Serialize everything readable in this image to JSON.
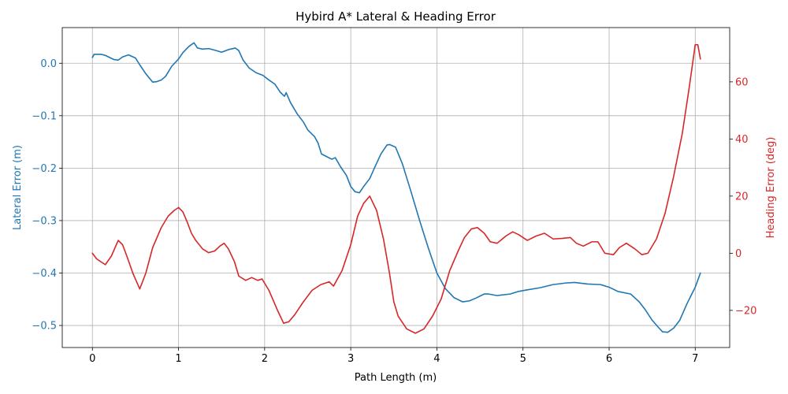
{
  "chart_data": {
    "type": "line",
    "title": "Hybird A* Lateral & Heading Error",
    "xlabel": "Path Length (m)",
    "ylabel_left": "Lateral Error (m)",
    "ylabel_right": "Heading Error (deg)",
    "xlim": [
      -0.35,
      7.4
    ],
    "ylim_left": [
      -0.542,
      0.068
    ],
    "ylim_right": [
      -33,
      79
    ],
    "x_ticks": [
      0,
      1,
      2,
      3,
      4,
      5,
      6,
      7
    ],
    "x_tick_labels": [
      "0",
      "1",
      "2",
      "3",
      "4",
      "5",
      "6",
      "7"
    ],
    "y_left_ticks": [
      0.0,
      -0.1,
      -0.2,
      -0.3,
      -0.4,
      -0.5
    ],
    "y_left_tick_labels": [
      "0.0",
      "−0.1",
      "−0.2",
      "−0.3",
      "−0.4",
      "−0.5"
    ],
    "y_right_ticks": [
      60,
      40,
      20,
      0,
      -20
    ],
    "y_right_tick_labels": [
      "60",
      "40",
      "20",
      "0",
      "−20"
    ],
    "grid": true,
    "colors": {
      "lateral": "#1f77b4",
      "heading": "#d62728"
    },
    "series": [
      {
        "axis": "left",
        "points": [
          [
            0,
            0.011
          ],
          [
            0.02,
            0.017
          ],
          [
            0.1,
            0.017
          ],
          [
            0.15,
            0.015
          ],
          [
            0.25,
            0.007
          ],
          [
            0.3,
            0.006
          ],
          [
            0.35,
            0.012
          ],
          [
            0.42,
            0.016
          ],
          [
            0.5,
            0.01
          ],
          [
            0.55,
            -0.003
          ],
          [
            0.62,
            -0.02
          ],
          [
            0.7,
            -0.036
          ],
          [
            0.75,
            -0.035
          ],
          [
            0.8,
            -0.032
          ],
          [
            0.85,
            -0.025
          ],
          [
            0.92,
            -0.006
          ],
          [
            1.0,
            0.008
          ],
          [
            1.05,
            0.02
          ],
          [
            1.12,
            0.032
          ],
          [
            1.18,
            0.039
          ],
          [
            1.22,
            0.029
          ],
          [
            1.28,
            0.027
          ],
          [
            1.35,
            0.028
          ],
          [
            1.42,
            0.025
          ],
          [
            1.5,
            0.021
          ],
          [
            1.58,
            0.026
          ],
          [
            1.66,
            0.029
          ],
          [
            1.7,
            0.024
          ],
          [
            1.75,
            0.006
          ],
          [
            1.82,
            -0.009
          ],
          [
            1.9,
            -0.018
          ],
          [
            1.98,
            -0.023
          ],
          [
            2.05,
            -0.032
          ],
          [
            2.12,
            -0.04
          ],
          [
            2.18,
            -0.055
          ],
          [
            2.23,
            -0.063
          ],
          [
            2.25,
            -0.056
          ],
          [
            2.3,
            -0.075
          ],
          [
            2.38,
            -0.097
          ],
          [
            2.45,
            -0.112
          ],
          [
            2.5,
            -0.127
          ],
          [
            2.58,
            -0.14
          ],
          [
            2.62,
            -0.152
          ],
          [
            2.66,
            -0.173
          ],
          [
            2.72,
            -0.178
          ],
          [
            2.78,
            -0.183
          ],
          [
            2.82,
            -0.18
          ],
          [
            2.88,
            -0.197
          ],
          [
            2.95,
            -0.214
          ],
          [
            3.0,
            -0.235
          ],
          [
            3.05,
            -0.245
          ],
          [
            3.1,
            -0.247
          ],
          [
            3.15,
            -0.235
          ],
          [
            3.22,
            -0.22
          ],
          [
            3.28,
            -0.198
          ],
          [
            3.35,
            -0.173
          ],
          [
            3.42,
            -0.156
          ],
          [
            3.45,
            -0.155
          ],
          [
            3.52,
            -0.16
          ],
          [
            3.6,
            -0.192
          ],
          [
            3.7,
            -0.245
          ],
          [
            3.8,
            -0.3
          ],
          [
            3.9,
            -0.352
          ],
          [
            4.0,
            -0.4
          ],
          [
            4.1,
            -0.43
          ],
          [
            4.2,
            -0.447
          ],
          [
            4.3,
            -0.455
          ],
          [
            4.38,
            -0.453
          ],
          [
            4.45,
            -0.448
          ],
          [
            4.55,
            -0.44
          ],
          [
            4.6,
            -0.44
          ],
          [
            4.7,
            -0.443
          ],
          [
            4.85,
            -0.44
          ],
          [
            4.95,
            -0.435
          ],
          [
            5.05,
            -0.432
          ],
          [
            5.2,
            -0.428
          ],
          [
            5.35,
            -0.422
          ],
          [
            5.5,
            -0.419
          ],
          [
            5.6,
            -0.418
          ],
          [
            5.75,
            -0.421
          ],
          [
            5.9,
            -0.422
          ],
          [
            6.0,
            -0.427
          ],
          [
            6.1,
            -0.435
          ],
          [
            6.25,
            -0.44
          ],
          [
            6.35,
            -0.455
          ],
          [
            6.42,
            -0.47
          ],
          [
            6.5,
            -0.49
          ],
          [
            6.58,
            -0.505
          ],
          [
            6.62,
            -0.512
          ],
          [
            6.68,
            -0.513
          ],
          [
            6.75,
            -0.505
          ],
          [
            6.82,
            -0.49
          ],
          [
            6.9,
            -0.46
          ],
          [
            6.96,
            -0.44
          ],
          [
            7.0,
            -0.427
          ],
          [
            7.06,
            -0.4
          ]
        ]
      },
      {
        "axis": "right",
        "points": [
          [
            0,
            0
          ],
          [
            0.05,
            -2
          ],
          [
            0.1,
            -3
          ],
          [
            0.15,
            -4
          ],
          [
            0.22,
            -1
          ],
          [
            0.3,
            4.5
          ],
          [
            0.35,
            3
          ],
          [
            0.4,
            -1
          ],
          [
            0.47,
            -7
          ],
          [
            0.55,
            -12.5
          ],
          [
            0.62,
            -7
          ],
          [
            0.7,
            2
          ],
          [
            0.8,
            9
          ],
          [
            0.88,
            13
          ],
          [
            0.95,
            15
          ],
          [
            1.0,
            16
          ],
          [
            1.05,
            14.5
          ],
          [
            1.1,
            11
          ],
          [
            1.15,
            7
          ],
          [
            1.2,
            4.5
          ],
          [
            1.28,
            1.5
          ],
          [
            1.35,
            0.2
          ],
          [
            1.42,
            0.8
          ],
          [
            1.48,
            2.5
          ],
          [
            1.53,
            3.5
          ],
          [
            1.58,
            1.5
          ],
          [
            1.65,
            -3
          ],
          [
            1.7,
            -8
          ],
          [
            1.78,
            -9.5
          ],
          [
            1.85,
            -8.5
          ],
          [
            1.92,
            -9.5
          ],
          [
            1.97,
            -9
          ],
          [
            2.05,
            -13
          ],
          [
            2.15,
            -20
          ],
          [
            2.22,
            -24.5
          ],
          [
            2.28,
            -24
          ],
          [
            2.35,
            -21.5
          ],
          [
            2.45,
            -17
          ],
          [
            2.55,
            -13
          ],
          [
            2.65,
            -11
          ],
          [
            2.75,
            -10
          ],
          [
            2.8,
            -11.5
          ],
          [
            2.9,
            -6
          ],
          [
            3.0,
            3
          ],
          [
            3.08,
            13
          ],
          [
            3.15,
            17.5
          ],
          [
            3.22,
            20
          ],
          [
            3.3,
            15
          ],
          [
            3.38,
            5
          ],
          [
            3.45,
            -7
          ],
          [
            3.5,
            -17
          ],
          [
            3.55,
            -22
          ],
          [
            3.65,
            -26.5
          ],
          [
            3.75,
            -28
          ],
          [
            3.85,
            -26.5
          ],
          [
            3.95,
            -22
          ],
          [
            4.05,
            -16
          ],
          [
            4.15,
            -6
          ],
          [
            4.25,
            1
          ],
          [
            4.32,
            5.5
          ],
          [
            4.4,
            8.5
          ],
          [
            4.47,
            9
          ],
          [
            4.55,
            7
          ],
          [
            4.62,
            4
          ],
          [
            4.7,
            3.5
          ],
          [
            4.8,
            6
          ],
          [
            4.88,
            7.5
          ],
          [
            4.95,
            6.5
          ],
          [
            5.05,
            4.5
          ],
          [
            5.15,
            6
          ],
          [
            5.25,
            7
          ],
          [
            5.35,
            5
          ],
          [
            5.45,
            5.2
          ],
          [
            5.55,
            5.5
          ],
          [
            5.62,
            3.5
          ],
          [
            5.7,
            2.5
          ],
          [
            5.8,
            4
          ],
          [
            5.87,
            4
          ],
          [
            5.95,
            0
          ],
          [
            6.05,
            -0.5
          ],
          [
            6.12,
            2
          ],
          [
            6.2,
            3.5
          ],
          [
            6.3,
            1.5
          ],
          [
            6.38,
            -0.5
          ],
          [
            6.45,
            0
          ],
          [
            6.55,
            5
          ],
          [
            6.65,
            14
          ],
          [
            6.75,
            27
          ],
          [
            6.85,
            42
          ],
          [
            6.93,
            58
          ],
          [
            7.0,
            73
          ],
          [
            7.03,
            73
          ],
          [
            7.06,
            68
          ]
        ]
      }
    ]
  }
}
